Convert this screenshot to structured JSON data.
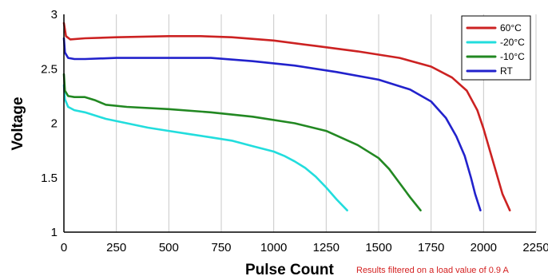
{
  "chart_data": {
    "type": "line",
    "title": "",
    "xlabel": "Pulse Count",
    "ylabel": "Voltage",
    "note": "Results filtered on a load value of 0.9 A",
    "xlim": [
      0,
      2250
    ],
    "ylim": [
      1,
      3
    ],
    "x_ticks": [
      "0",
      "250",
      "500",
      "750",
      "1000",
      "1250",
      "1500",
      "1750",
      "2000",
      "2250"
    ],
    "y_ticks": [
      "1",
      "1.5",
      "2",
      "2.5",
      "3"
    ],
    "x_tick_values": [
      0,
      250,
      500,
      750,
      1000,
      1250,
      1500,
      1750,
      2000,
      2250
    ],
    "y_tick_values": [
      1,
      1.5,
      2,
      2.5,
      3
    ],
    "grid": "vertical",
    "legend_position": "top-right",
    "series": [
      {
        "name": "60°C",
        "color": "#cc2222",
        "x": [
          0,
          10,
          30,
          100,
          250,
          500,
          650,
          800,
          1000,
          1200,
          1400,
          1600,
          1750,
          1850,
          1920,
          1970,
          2000,
          2030,
          2060,
          2090,
          2125
        ],
        "y": [
          2.92,
          2.8,
          2.77,
          2.78,
          2.79,
          2.8,
          2.8,
          2.79,
          2.76,
          2.71,
          2.66,
          2.6,
          2.52,
          2.42,
          2.3,
          2.12,
          1.95,
          1.75,
          1.55,
          1.35,
          1.2
        ]
      },
      {
        "name": "-20°C",
        "color": "#22dddd",
        "x": [
          0,
          5,
          20,
          50,
          100,
          200,
          300,
          400,
          500,
          600,
          700,
          800,
          900,
          1000,
          1050,
          1100,
          1150,
          1200,
          1250,
          1300,
          1350
        ],
        "y": [
          2.35,
          2.22,
          2.15,
          2.12,
          2.1,
          2.04,
          2.0,
          1.96,
          1.93,
          1.9,
          1.87,
          1.84,
          1.79,
          1.74,
          1.7,
          1.65,
          1.59,
          1.51,
          1.41,
          1.3,
          1.2
        ]
      },
      {
        "name": "-10°C",
        "color": "#228822",
        "x": [
          0,
          5,
          20,
          50,
          100,
          150,
          200,
          300,
          500,
          700,
          900,
          1100,
          1250,
          1400,
          1500,
          1550,
          1600,
          1650,
          1700
        ],
        "y": [
          2.45,
          2.3,
          2.25,
          2.24,
          2.24,
          2.21,
          2.17,
          2.15,
          2.13,
          2.1,
          2.06,
          2.0,
          1.93,
          1.8,
          1.68,
          1.58,
          1.45,
          1.32,
          1.2
        ]
      },
      {
        "name": "RT",
        "color": "#2222cc",
        "x": [
          0,
          5,
          20,
          50,
          100,
          250,
          500,
          700,
          900,
          1100,
          1300,
          1500,
          1650,
          1750,
          1820,
          1870,
          1910,
          1940,
          1960,
          1985
        ],
        "y": [
          2.78,
          2.65,
          2.6,
          2.59,
          2.59,
          2.6,
          2.6,
          2.6,
          2.57,
          2.53,
          2.47,
          2.4,
          2.31,
          2.2,
          2.05,
          1.88,
          1.7,
          1.5,
          1.35,
          1.2
        ]
      }
    ]
  }
}
